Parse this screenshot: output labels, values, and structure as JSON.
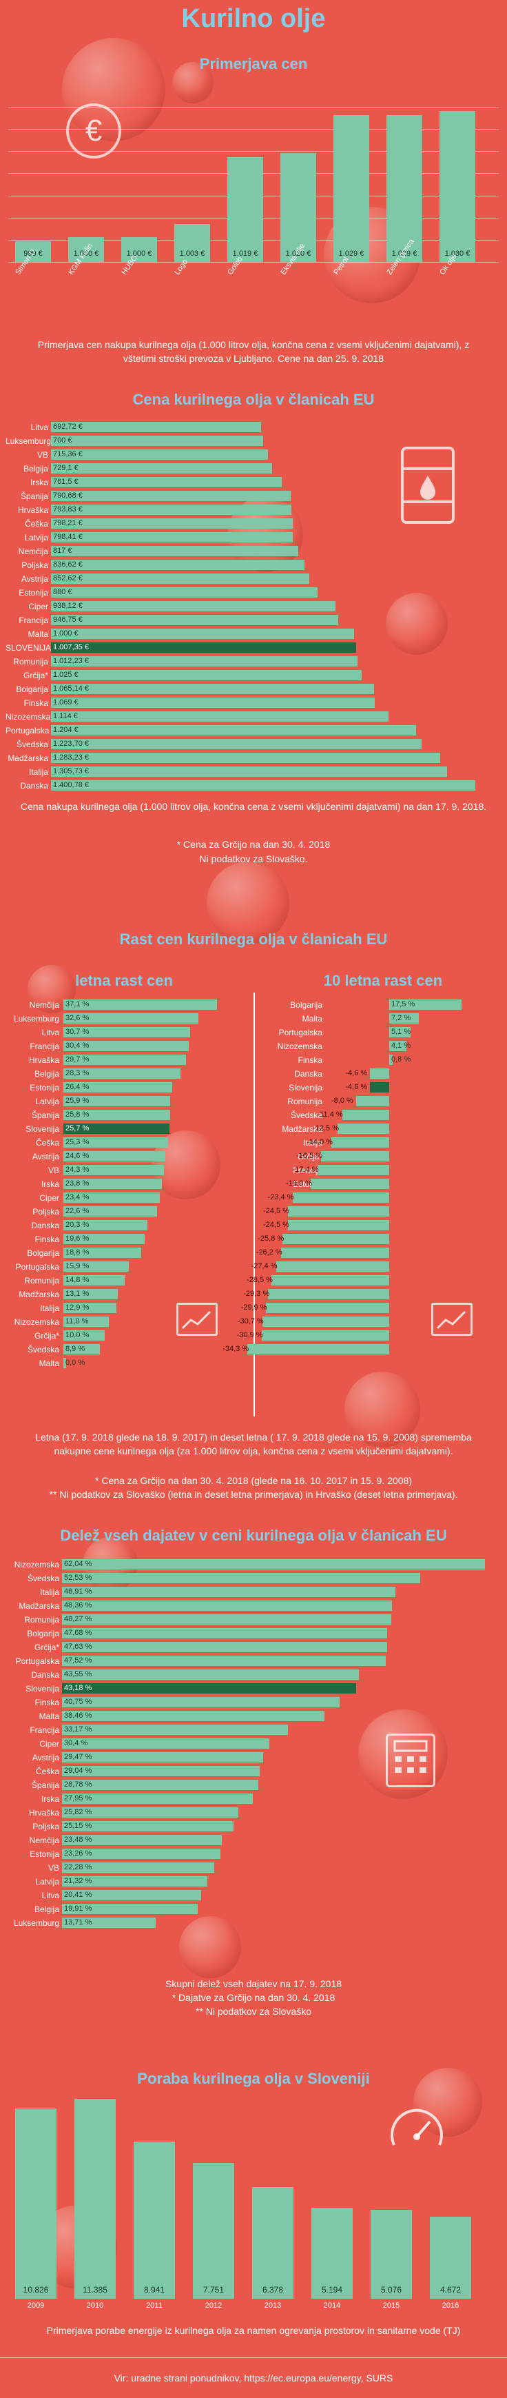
{
  "page_title": "Kurilno olje",
  "chart_data": [
    {
      "type": "bar",
      "title": "Primerjava cen",
      "categories": [
        "Simon D.",
        "KGM Kolin",
        "HUBO",
        "Logo",
        "Golob",
        "Eksvia olje",
        "Petrol",
        "Zelen gorica",
        "Ok olje"
      ],
      "value_labels": [
        "999 €",
        "1.000 €",
        "1.000 €",
        "1.003 €",
        "1.019 €",
        "1.020 €",
        "1.029 €",
        "1.029 €",
        "1.030 €"
      ],
      "values": [
        999,
        1000,
        1000,
        1003,
        1019,
        1020,
        1029,
        1029,
        1030
      ],
      "ylim": [
        994,
        1031
      ],
      "caption": "Primerjava cen nakupa kurilnega olja  (1.000 litrov olja, končna cena z vsemi vključenimi dajatvami), z vštetimi stroški prevoza v Ljubljano. Cene na dan 25. 9. 2018"
    },
    {
      "type": "bar",
      "orientation": "horizontal",
      "title": "Cena kurilnega olja v članicah EU",
      "categories": [
        "Litva",
        "Luksemburg",
        "VB",
        "Belgija",
        "Irska",
        "Španija",
        "Hrvaška",
        "Češka",
        "Latvija",
        "Nemčija",
        "Poljska",
        "Avstrija",
        "Estonija",
        "Ciper",
        "Francija",
        "Malta",
        "SLOVENIJA",
        "Romunija",
        "Grčija*",
        "Bolgarija",
        "Finska",
        "Nizozemska",
        "Portugalska",
        "Švedska",
        "Madžarska",
        "Italija",
        "Danska"
      ],
      "labels": [
        "692,72 €",
        "700 €",
        "715,36 €",
        "729,1 €",
        "761,5 €",
        "790,68 €",
        "793,83 €",
        "798,21 €",
        "798,41 €",
        "817 €",
        "836,62 €",
        "852,62 €",
        "880 €",
        "938,12 €",
        "946,75 €",
        "1.000 €",
        "1.007,35 €",
        "1.012,23 €",
        "1.025 €",
        "1.065,14 €",
        "1.069 €",
        "1.114 €",
        "1.204 €",
        "1.223,70 €",
        "1.283,23 €",
        "1.305,73 €",
        "1.400,78 €"
      ],
      "values": [
        692.72,
        700,
        715.36,
        729.1,
        761.5,
        790.68,
        793.83,
        798.21,
        798.41,
        817,
        836.62,
        852.62,
        880,
        938.12,
        946.75,
        1000,
        1007.35,
        1012.23,
        1025,
        1065.14,
        1069,
        1114,
        1204,
        1223.7,
        1283.23,
        1305.73,
        1400.78
      ],
      "highlight": "SLOVENIJA",
      "notes": [
        "Cena nakupa kurilnega olja  (1.000 litrov olja, končna cena z vsemi vključenimi dajatvami) na dan 17. 9. 2018.",
        "* Cena za Grčijo na dan 30. 4. 2018",
        "Ni podatkov za Slovaško."
      ]
    },
    {
      "type": "bar",
      "orientation": "horizontal",
      "title": "letna rast cen",
      "section_title": "Rast cen kurilnega olja v članicah EU",
      "categories": [
        "Nemčija",
        "Luksemburg",
        "Litva",
        "Francija",
        "Hrvaška",
        "Belgija",
        "Estonija",
        "Latvija",
        "Španija",
        "Slovenija",
        "Češka",
        "Avstrija",
        "VB",
        "Irska",
        "Ciper",
        "Poljska",
        "Danska",
        "Finska",
        "Bolgarija",
        "Portugalska",
        "Romunija",
        "Madžarska",
        "Italija",
        "Nizozemska",
        "Grčija*",
        "Švedska",
        "Malta"
      ],
      "labels": [
        "37,1 %",
        "32,6 %",
        "30,7 %",
        "30,4 %",
        "29,7 %",
        "28,3 %",
        "26,4 %",
        "25,9 %",
        "25,8 %",
        "25,7 %",
        "25,3 %",
        "24,6 %",
        "24,3 %",
        "23,8 %",
        "23,4 %",
        "22,6 %",
        "20,3 %",
        "19,6 %",
        "18,8 %",
        "15,9 %",
        "14,8 %",
        "13,1 %",
        "12,9 %",
        "11,0 %",
        "10,0 %",
        "8,9 %",
        "0,0 %"
      ],
      "values": [
        37.1,
        32.6,
        30.7,
        30.4,
        29.7,
        28.3,
        26.4,
        25.9,
        25.8,
        25.7,
        25.3,
        24.6,
        24.3,
        23.8,
        23.4,
        22.6,
        20.3,
        19.6,
        18.8,
        15.9,
        14.8,
        13.1,
        12.9,
        11.0,
        10.0,
        8.9,
        0.0
      ],
      "highlight": "Slovenija"
    },
    {
      "type": "bar",
      "orientation": "horizontal",
      "title": "10 letna rast cen",
      "categories": [
        "Bolgarija",
        "Malta",
        "Portugalska",
        "Nizozemska",
        "Finska",
        "Danska",
        "Slovenija",
        "Romunija",
        "Švedska",
        "Madžarska",
        "Italija",
        "Grčija*",
        "Francija",
        "Estonija",
        "Poljska",
        "Latvija",
        "Avstrija",
        "Češka",
        "VB",
        "Španija",
        "Ciper",
        "Luksemburg",
        "Belgija",
        "Litva",
        "Nemčija",
        "Irska"
      ],
      "labels": [
        "17,5 %",
        "7,2 %",
        "5,1 %",
        "4,1 %",
        "0,8 %",
        "-4,6 %",
        "-4,6 %",
        "-8,0 %",
        "-11,4 %",
        "-12,5 %",
        "-14,0 %",
        "-16,5 %",
        "-17,4 %",
        "-19,0 %",
        "-23,4 %",
        "-24,5 %",
        "-24,5 %",
        "-25,8 %",
        "-26,2 %",
        "-27,4 %",
        "-28,5 %",
        "-29,3 %",
        "-29,9 %",
        "-30,7 %",
        "-30,9 %",
        "-34,3 %"
      ],
      "values": [
        17.5,
        7.2,
        5.1,
        4.1,
        0.8,
        -4.6,
        -4.6,
        -8.0,
        -11.4,
        -12.5,
        -14.0,
        -16.5,
        -17.4,
        -19.0,
        -23.4,
        -24.5,
        -24.5,
        -25.8,
        -26.2,
        -27.4,
        -28.5,
        -29.3,
        -29.9,
        -30.7,
        -30.9,
        -34.3
      ],
      "highlight": "Slovenija",
      "notes": [
        "Letna (17. 9. 2018 glede na 18. 9. 2017) in deset letna ( 17. 9. 2018 glede na 15. 9. 2008) sprememba nakupne cene kurilnega olja  (za 1.000 litrov olja, končna cena z vsemi vključenimi dajatvami).",
        "* Cena za Grčijo na dan 30. 4. 2018 (glede na 16. 10. 2017 in 15. 9. 2008)",
        "** Ni podatkov za Slovaško (letna in deset letna primerjava) in Hrvaško (deset letna primerjava)."
      ]
    },
    {
      "type": "bar",
      "orientation": "horizontal",
      "title": "Delež vseh dajatev v ceni kurilnega olja v članicah EU",
      "categories": [
        "Nizozemska",
        "Švedska",
        "Italija",
        "Madžarska",
        "Romunija",
        "Bolgarija",
        "Grčija*",
        "Portugalska",
        "Danska",
        "Slovenija",
        "Finska",
        "Malta",
        "Francija",
        "Ciper",
        "Avstrija",
        "Češka",
        "Španija",
        "Irska",
        "Hrvaška",
        "Poljska",
        "Nemčija",
        "Estonija",
        "VB",
        "Latvija",
        "Litva",
        "Belgija",
        "Luksemburg"
      ],
      "labels": [
        "62,04 %",
        "52,53 %",
        "48,91 %",
        "48,36 %",
        "48,27 %",
        "47,68 %",
        "47,63 %",
        "47,52 %",
        "43,55 %",
        "43,18 %",
        "40,75 %",
        "38,46 %",
        "33,17 %",
        "30,4 %",
        "29,47 %",
        "29,04 %",
        "28,78 %",
        "27,95 %",
        "25,82 %",
        "25,15 %",
        "23,48 %",
        "23,26 %",
        "22,28 %",
        "21,32 %",
        "20,41 %",
        "19,91 %",
        "13,71 %"
      ],
      "values": [
        62.04,
        52.53,
        48.91,
        48.36,
        48.27,
        47.68,
        47.63,
        47.52,
        43.55,
        43.18,
        40.75,
        38.46,
        33.17,
        30.4,
        29.47,
        29.04,
        28.78,
        27.95,
        25.82,
        25.15,
        23.48,
        23.26,
        22.28,
        21.32,
        20.41,
        19.91,
        13.71
      ],
      "highlight": "Slovenija",
      "notes": [
        "Skupni delež vseh dajatev na 17. 9. 2018",
        "* Dajatve za Grčijo na dan 30. 4. 2018",
        "** Ni podatkov za Slovaško"
      ]
    },
    {
      "type": "bar",
      "title": "Poraba kurilnega olja v Sloveniji",
      "categories": [
        "2009",
        "2010",
        "2011",
        "2012",
        "2013",
        "2014",
        "2015",
        "2016"
      ],
      "value_labels": [
        "10.826",
        "11.385",
        "8.941",
        "7.751",
        "6.378",
        "5.194",
        "5.076",
        "4.672"
      ],
      "values": [
        10826,
        11385,
        8941,
        7751,
        6378,
        5194,
        5076,
        4672
      ],
      "caption": "Primerjava porabe energije iz kurilnega olja za namen ogrevanja prostorov in sanitarne vode (TJ)"
    }
  ],
  "footer": {
    "source": "Vir: uradne strani ponudnikov, https://ec.europa.eu/energy, SURS"
  },
  "icons": [
    "euro-icon",
    "oil-barrel-icon",
    "chart-trend-icon",
    "tax-calculator-icon",
    "gauge-icon"
  ]
}
